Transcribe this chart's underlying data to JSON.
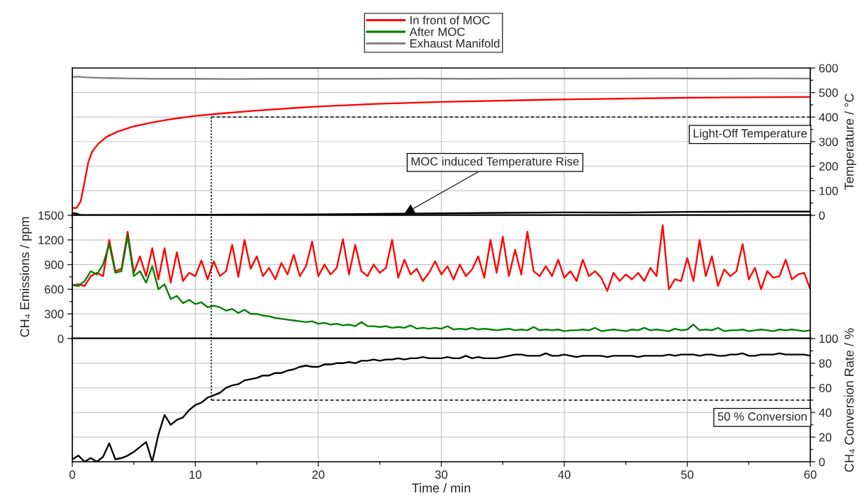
{
  "chart_data": [
    {
      "type": "line",
      "xlim": [
        0,
        60
      ],
      "xticks": [
        0,
        10,
        20,
        30,
        40,
        50,
        60
      ],
      "ylim": [
        0,
        600
      ],
      "yticks": [
        0,
        100,
        200,
        300,
        400,
        500,
        600
      ],
      "ylabel": "Temperature / °C",
      "grid": true,
      "legend": "top",
      "tick_labels": "y",
      "series": [
        {
          "name": "In front of MOC",
          "color": "#ff0000",
          "x": [
            0,
            0.35,
            0.68,
            0.99,
            1.3,
            1.6,
            2.1,
            2.8,
            3.65,
            4.9,
            6.3,
            7.8,
            10,
            11.9,
            14.8,
            18,
            20,
            24.8,
            30,
            40,
            50,
            60
          ],
          "values": [
            30,
            30,
            57,
            134,
            216,
            258,
            291,
            320,
            340,
            361,
            376,
            390,
            405,
            414,
            426,
            437,
            443,
            454,
            462,
            472,
            479,
            482
          ]
        },
        {
          "color": "#000000",
          "x": [
            0,
            0.3,
            0.6,
            1,
            14.8,
            20,
            25,
            30,
            35,
            40,
            45,
            50,
            55,
            60
          ],
          "values": [
            8,
            8,
            2,
            0,
            3,
            4,
            6,
            8,
            10,
            12,
            11,
            14,
            15,
            15
          ]
        },
        {
          "name": "Exhaust Manifold",
          "color": "#808080",
          "x": [
            0,
            0.5,
            1,
            2,
            3,
            5,
            7,
            10,
            13,
            16,
            20,
            24,
            28,
            32,
            36,
            40,
            44,
            48,
            52,
            56,
            60
          ],
          "values": [
            563,
            565,
            562,
            560,
            559,
            557,
            556,
            556,
            555,
            556,
            556,
            556,
            557,
            556,
            557,
            557,
            557,
            558,
            557,
            558,
            557
          ]
        }
      ],
      "ref_lines": [
        {
          "axis": "x",
          "value": 11.3,
          "line_style": "dotted"
        },
        {
          "axis": "y",
          "value": 400,
          "label": "Light-Off Temperature",
          "line_style": "dashed"
        }
      ],
      "annotations": [
        {
          "text": "MOC induced Temperature Rise",
          "x": 27,
          "y": 7
        }
      ]
    },
    {
      "type": "line",
      "xlim": [
        0,
        60
      ],
      "xticks": [
        0,
        10,
        20,
        30,
        40,
        50,
        60
      ],
      "ylim": [
        0,
        1500
      ],
      "yticks": [
        0,
        300,
        600,
        900,
        1200,
        1500
      ],
      "ylabel": "CH₄ Emissions / ppm",
      "grid": true,
      "tick_labels": "y",
      "x": [
        0,
        0.5,
        1,
        1.5,
        2,
        2.5,
        3,
        3.5,
        4,
        4.5,
        5,
        5.5,
        6,
        6.5,
        7,
        7.5,
        8,
        8.5,
        9,
        9.5,
        10,
        10.5,
        11,
        11.5,
        12,
        12.5,
        13,
        13.5,
        14,
        14.5,
        15,
        15.5,
        16,
        16.5,
        17,
        17.5,
        18,
        18.5,
        19,
        19.5,
        20,
        20.5,
        21,
        21.5,
        22,
        22.5,
        23,
        23.5,
        24,
        24.5,
        25,
        25.5,
        26,
        26.5,
        27,
        27.5,
        28,
        28.5,
        29,
        29.5,
        30,
        30.5,
        31,
        31.5,
        32,
        32.5,
        33,
        33.5,
        34,
        34.5,
        35,
        35.5,
        36,
        36.5,
        37,
        37.5,
        38,
        38.5,
        39,
        39.5,
        40,
        40.5,
        41,
        41.5,
        42,
        42.5,
        43,
        43.5,
        44,
        44.5,
        45,
        45.5,
        46,
        46.5,
        47,
        47.5,
        48,
        48.5,
        49,
        49.5,
        50,
        50.5,
        51,
        51.5,
        52,
        52.5,
        53,
        53.5,
        54,
        54.5,
        55,
        55.5,
        56,
        56.5,
        57,
        57.5,
        58,
        58.5,
        59,
        59.5,
        60
      ],
      "series": [
        {
          "color": "#ff0000",
          "values": [
            650,
            660,
            640,
            760,
            800,
            760,
            1200,
            820,
            850,
            1300,
            800,
            1000,
            760,
            1100,
            720,
            1100,
            680,
            1050,
            700,
            800,
            760,
            950,
            720,
            940,
            760,
            820,
            1140,
            750,
            1200,
            850,
            1000,
            760,
            860,
            720,
            920,
            780,
            1020,
            760,
            880,
            1180,
            760,
            900,
            780,
            860,
            1210,
            780,
            1140,
            820,
            760,
            900,
            800,
            860,
            1200,
            740,
            960,
            780,
            850,
            700,
            800,
            940,
            780,
            880,
            720,
            900,
            760,
            840,
            1000,
            740,
            1200,
            800,
            1240,
            760,
            1080,
            780,
            1300,
            820,
            760,
            880,
            760,
            960,
            740,
            820,
            700,
            960,
            760,
            820,
            740,
            580,
            800,
            700,
            780,
            720,
            800,
            700,
            860,
            760,
            1380,
            600,
            720,
            700,
            980,
            700,
            1200,
            760,
            1000,
            640,
            840,
            760,
            820,
            1150,
            720,
            860,
            600,
            820,
            740,
            760,
            960,
            720,
            780,
            800,
            600
          ]
        },
        {
          "name": "After MOC",
          "color": "#008000",
          "values": [
            650,
            640,
            700,
            820,
            780,
            900,
            1150,
            800,
            820,
            1250,
            760,
            820,
            680,
            880,
            600,
            660,
            480,
            520,
            430,
            470,
            420,
            440,
            380,
            400,
            380,
            340,
            360,
            310,
            350,
            300,
            300,
            280,
            270,
            250,
            240,
            230,
            220,
            210,
            200,
            210,
            180,
            190,
            170,
            180,
            160,
            170,
            150,
            200,
            150,
            150,
            140,
            150,
            130,
            140,
            130,
            160,
            120,
            130,
            120,
            130,
            120,
            150,
            110,
            120,
            110,
            130,
            110,
            120,
            110,
            100,
            110,
            120,
            100,
            110,
            100,
            140,
            100,
            110,
            100,
            110,
            90,
            100,
            100,
            110,
            100,
            130,
            90,
            100,
            110,
            100,
            90,
            110,
            100,
            130,
            100,
            110,
            100,
            90,
            120,
            100,
            110,
            170,
            100,
            110,
            100,
            130,
            90,
            100,
            100,
            110,
            90,
            100,
            110,
            100,
            90,
            110,
            100,
            110,
            100,
            90,
            100
          ]
        }
      ],
      "ref_lines": [
        {
          "axis": "x",
          "value": 11.3,
          "line_style": "dotted"
        }
      ]
    },
    {
      "type": "line",
      "xlim": [
        0,
        60
      ],
      "xticks": [
        0,
        10,
        20,
        30,
        40,
        50,
        60
      ],
      "xlabel": "Time / min",
      "ylim": [
        0,
        100
      ],
      "yticks": [
        0,
        20,
        40,
        60,
        80,
        100
      ],
      "ylabel": "CH₄ Conversion Rate / %",
      "grid": true,
      "x": [
        0,
        0.5,
        1,
        1.5,
        2,
        2.5,
        3,
        3.5,
        4,
        4.5,
        5,
        5.5,
        6,
        6.5,
        7,
        7.5,
        8,
        8.5,
        9,
        9.5,
        10,
        10.5,
        11,
        11.5,
        12,
        12.5,
        13,
        13.5,
        14,
        14.5,
        15,
        15.5,
        16,
        16.5,
        17,
        17.5,
        18,
        18.5,
        19,
        19.5,
        20,
        20.5,
        21,
        21.5,
        22,
        22.5,
        23,
        23.5,
        24,
        24.5,
        25,
        25.5,
        26,
        26.5,
        27,
        27.5,
        28,
        28.5,
        29,
        29.5,
        30,
        30.5,
        31,
        31.5,
        32,
        32.5,
        33,
        33.5,
        34,
        34.5,
        35,
        35.5,
        36,
        36.5,
        37,
        37.5,
        38,
        38.5,
        39,
        39.5,
        40,
        40.5,
        41,
        41.5,
        42,
        42.5,
        43,
        43.5,
        44,
        44.5,
        45,
        45.5,
        46,
        46.5,
        47,
        47.5,
        48,
        48.5,
        49,
        49.5,
        50,
        50.5,
        51,
        51.5,
        52,
        52.5,
        53,
        53.5,
        54,
        54.5,
        55,
        55.5,
        56,
        56.5,
        57,
        57.5,
        58,
        58.5,
        59,
        59.5,
        60
      ],
      "series": [
        {
          "color": "#000000",
          "values": [
            2,
            5,
            0,
            3,
            0,
            4,
            15,
            2,
            3,
            5,
            8,
            12,
            16,
            0,
            22,
            38,
            30,
            34,
            36,
            42,
            46,
            48,
            52,
            54,
            56,
            60,
            62,
            63,
            66,
            67,
            68,
            70,
            70,
            72,
            72,
            74,
            75,
            77,
            78,
            77,
            77,
            79,
            79,
            80,
            80,
            81,
            80,
            82,
            82,
            83,
            82,
            83,
            83,
            84,
            83,
            84,
            84,
            85,
            84,
            84,
            84,
            85,
            84,
            84,
            86,
            84,
            85,
            84,
            84,
            84,
            85,
            86,
            87,
            87,
            86,
            86,
            86,
            88,
            86,
            86,
            87,
            86,
            85,
            86,
            86,
            86,
            86,
            85,
            86,
            86,
            86,
            86,
            85,
            86,
            86,
            86,
            86,
            87,
            86,
            87,
            87,
            87,
            86,
            87,
            87,
            86,
            86,
            87,
            87,
            88,
            86,
            86,
            87,
            87,
            87,
            88,
            87,
            87,
            87,
            87,
            86
          ]
        }
      ],
      "ref_lines": [
        {
          "axis": "x",
          "value": 11.3,
          "line_style": "dotted"
        },
        {
          "axis": "y",
          "value": 50,
          "label": "50 % Conversion",
          "line_style": "dashed"
        }
      ]
    }
  ]
}
